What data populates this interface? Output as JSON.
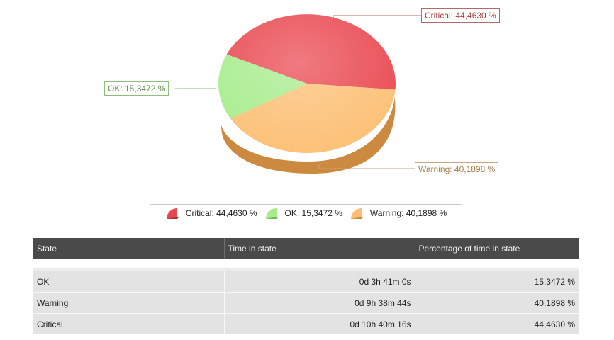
{
  "chart_data": {
    "type": "pie",
    "slices": [
      {
        "label": "Critical",
        "value": 44.463,
        "display": "Critical: 44,4630 %",
        "color": "#e9474f"
      },
      {
        "label": "OK",
        "value": 15.3472,
        "display": "OK: 15,3472 %",
        "color": "#a6ec8b"
      },
      {
        "label": "Warning",
        "value": 40.1898,
        "display": "Warning: 40,1898 %",
        "color": "#fcbf73"
      }
    ],
    "legend_position": "bottom",
    "style": "3d"
  },
  "table": {
    "headers": [
      "State",
      "Time in state",
      "Percentage of time in state"
    ],
    "rows": [
      {
        "state": "OK",
        "time": "0d 3h 41m 0s",
        "percent": "15,3472 %"
      },
      {
        "state": "Warning",
        "time": "0d 9h 38m 44s",
        "percent": "40,1898 %"
      },
      {
        "state": "Critical",
        "time": "0d 10h 40m 16s",
        "percent": "44,4630 %"
      }
    ]
  }
}
